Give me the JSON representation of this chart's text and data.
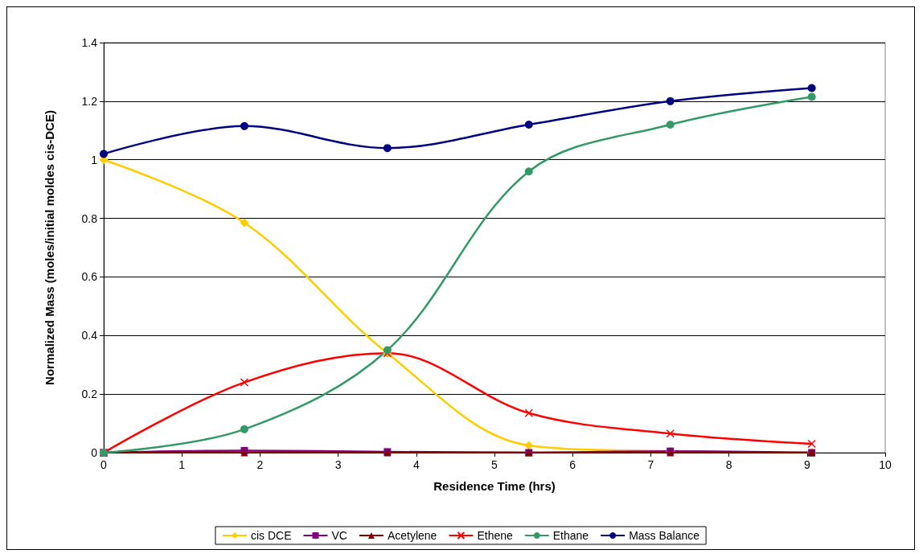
{
  "chart_data": {
    "type": "line",
    "xlabel": "Residence Time (hrs)",
    "ylabel": "Normalized Mass (moles/initial moldes cis-DCE)",
    "xlim": [
      0,
      10
    ],
    "xticks": [
      0,
      1,
      2,
      3,
      4,
      5,
      6,
      7,
      8,
      9,
      10
    ],
    "ylim": [
      0,
      1.4
    ],
    "yticks": [
      0,
      0.2,
      0.4,
      0.6,
      0.8,
      1,
      1.2,
      1.4
    ],
    "grid": "y",
    "legend": "bottom",
    "x": [
      0,
      1.8,
      3.63,
      5.44,
      7.25,
      9.06
    ],
    "series": [
      {
        "name": "cis DCE",
        "color": "#ffcc00",
        "marker": "diamond",
        "values": [
          1.0,
          0.785,
          0.34,
          0.025,
          0.005,
          0
        ]
      },
      {
        "name": "VC",
        "color": "#800080",
        "marker": "square",
        "values": [
          0,
          0.007,
          0.003,
          0,
          0.005,
          0
        ]
      },
      {
        "name": "Acetylene",
        "color": "#800000",
        "marker": "triangle",
        "values": [
          0,
          0,
          0,
          0,
          0,
          0
        ]
      },
      {
        "name": "Ethene",
        "color": "#ff0000",
        "marker": "cross",
        "values": [
          0,
          0.24,
          0.34,
          0.135,
          0.065,
          0.03
        ]
      },
      {
        "name": "Ethane",
        "color": "#339966",
        "marker": "circle",
        "values": [
          0,
          0.08,
          0.35,
          0.96,
          1.12,
          1.215
        ]
      },
      {
        "name": "Mass Balance",
        "color": "#000080",
        "marker": "circle",
        "values": [
          1.02,
          1.115,
          1.04,
          1.12,
          1.2,
          1.245
        ]
      }
    ]
  }
}
